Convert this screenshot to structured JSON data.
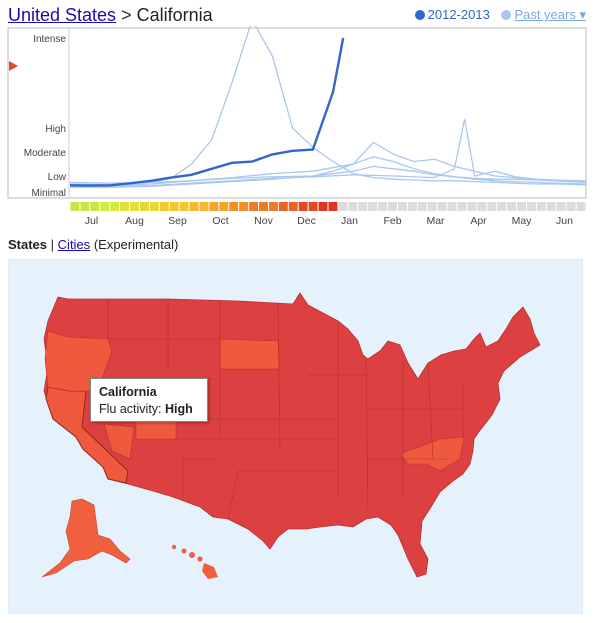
{
  "header": {
    "country_link": "United States",
    "separator": ">",
    "region": "California"
  },
  "legend": {
    "current_label": "2012-2013",
    "past_label": "Past years ▾",
    "current_color": "#3366cc",
    "past_color": "#a9c8ee"
  },
  "chart_data": {
    "type": "line",
    "y_levels": [
      "Intense",
      "High",
      "Moderate",
      "Low",
      "Minimal"
    ],
    "months": [
      "Jul",
      "Aug",
      "Sep",
      "Oct",
      "Nov",
      "Dec",
      "Jan",
      "Feb",
      "Mar",
      "Apr",
      "May",
      "Jun"
    ],
    "week_count": 52,
    "current_weeks_shown": 27,
    "intensity_colors": [
      "#c7e64a",
      "#d4ea3c",
      "#e0e23a",
      "#e8d536",
      "#f0c832",
      "#f4b92e",
      "#f5a52b",
      "#f28f28",
      "#ee7926",
      "#e96324",
      "#e34c22",
      "#dd3621"
    ],
    "current_season": {
      "name": "2012-2013",
      "x": [
        0,
        2,
        4,
        6,
        8,
        10,
        12,
        14,
        16,
        18,
        20,
        22,
        24,
        26,
        27
      ],
      "y": [
        0.42,
        0.4,
        0.42,
        0.55,
        0.7,
        0.9,
        1.05,
        1.3,
        1.55,
        1.6,
        1.9,
        2.05,
        2.1,
        3.4,
        4.0
      ]
    },
    "past_seasons": [
      {
        "name": "past-1",
        "x": [
          0,
          4,
          8,
          10,
          12,
          14,
          16,
          18,
          20,
          22,
          24,
          26,
          28,
          30,
          32,
          34,
          36,
          38,
          40,
          42,
          44,
          46,
          48,
          51
        ],
        "y": [
          0.5,
          0.45,
          0.6,
          0.85,
          1.5,
          2.5,
          3.5,
          4.2,
          3.8,
          3.0,
          2.2,
          1.6,
          1.1,
          0.9,
          0.8,
          0.75,
          0.7,
          0.7,
          0.65,
          0.6,
          0.55,
          0.5,
          0.5,
          0.45
        ]
      },
      {
        "name": "past-2",
        "x": [
          0,
          4,
          8,
          12,
          16,
          20,
          24,
          28,
          30,
          32,
          34,
          36,
          38,
          40,
          42,
          44,
          46,
          48,
          51
        ],
        "y": [
          0.4,
          0.4,
          0.5,
          0.7,
          0.9,
          1.1,
          1.2,
          1.5,
          2.4,
          1.9,
          1.6,
          1.7,
          1.4,
          1.2,
          1.0,
          0.9,
          0.8,
          0.7,
          0.6
        ]
      },
      {
        "name": "past-3",
        "x": [
          0,
          4,
          8,
          12,
          16,
          20,
          24,
          28,
          30,
          32,
          34,
          36,
          38,
          40,
          42,
          44,
          46,
          48,
          51
        ],
        "y": [
          0.6,
          0.55,
          0.6,
          0.7,
          0.85,
          0.95,
          1.0,
          1.2,
          1.4,
          1.3,
          1.2,
          1.05,
          0.95,
          0.85,
          0.8,
          0.8,
          0.75,
          0.7,
          0.6
        ]
      },
      {
        "name": "past-4",
        "x": [
          0,
          4,
          8,
          12,
          16,
          20,
          24,
          26,
          28,
          30,
          32,
          34,
          36,
          38,
          40,
          42,
          44,
          46,
          48,
          51
        ],
        "y": [
          0.3,
          0.3,
          0.35,
          0.5,
          0.65,
          0.8,
          1.0,
          1.2,
          1.5,
          1.8,
          1.6,
          1.3,
          1.1,
          0.95,
          0.8,
          0.7,
          0.65,
          0.6,
          0.55,
          0.5
        ]
      },
      {
        "name": "past-5",
        "x": [
          0,
          4,
          8,
          12,
          16,
          20,
          24,
          28,
          32,
          36,
          38,
          39,
          40,
          42,
          44,
          46,
          48,
          51
        ],
        "y": [
          0.35,
          0.35,
          0.4,
          0.55,
          0.7,
          0.85,
          0.95,
          1.05,
          1.0,
          0.9,
          1.3,
          3.1,
          1.0,
          1.2,
          0.95,
          0.8,
          0.75,
          0.7
        ]
      }
    ]
  },
  "tabs": {
    "states_label": "States",
    "divider": "|",
    "cities_label": "Cities",
    "experimental_label": "(Experimental)"
  },
  "map": {
    "ocean_color": "#e6f2fb",
    "high_color": "#dd4040",
    "elevated_color": "#ef5a3f",
    "selected_state": "California",
    "alaska_color": "#f0603e",
    "hawaii_color": "#f0603e"
  },
  "tooltip": {
    "state": "California",
    "activity_label": "Flu activity:",
    "activity_value": "High"
  }
}
